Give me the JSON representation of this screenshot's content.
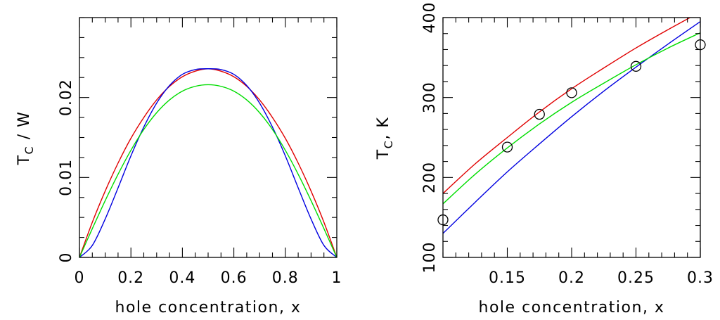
{
  "chart_data": [
    {
      "type": "line",
      "xlabel": "hole concentration, x",
      "ylabel": "T_C / W",
      "ylabel_main": "T",
      "ylabel_sub": "C",
      "ylabel_rest": " / W",
      "xlim": [
        0,
        1
      ],
      "ylim": [
        0,
        0.03
      ],
      "x_ticks": [
        0,
        0.2,
        0.4,
        0.6,
        0.8,
        1
      ],
      "x_tick_labels": [
        "0",
        "0.2",
        "0.4",
        "0.6",
        "0.8",
        "1"
      ],
      "y_ticks": [
        0,
        0.01,
        0.02
      ],
      "y_tick_labels": [
        "0",
        "0.01",
        "0.02"
      ],
      "grid": false,
      "series": [
        {
          "color": "#e00000",
          "x": [
            0,
            0.05,
            0.1,
            0.15,
            0.2,
            0.25,
            0.3,
            0.35,
            0.4,
            0.45,
            0.5,
            0.55,
            0.6,
            0.65,
            0.7,
            0.75,
            0.8,
            0.85,
            0.9,
            0.95,
            1
          ],
          "y": [
            0,
            0.0044,
            0.0083,
            0.0118,
            0.0149,
            0.0175,
            0.0197,
            0.0214,
            0.0226,
            0.0233,
            0.0236,
            0.0233,
            0.0226,
            0.0214,
            0.0197,
            0.0175,
            0.0149,
            0.0118,
            0.0083,
            0.0044,
            0
          ]
        },
        {
          "color": "#0000e0",
          "x": [
            0,
            0.05,
            0.1,
            0.15,
            0.2,
            0.25,
            0.3,
            0.35,
            0.4,
            0.45,
            0.5,
            0.55,
            0.6,
            0.65,
            0.7,
            0.75,
            0.8,
            0.85,
            0.9,
            0.95,
            1
          ],
          "y": [
            0,
            0.0015,
            0.0048,
            0.0087,
            0.0127,
            0.0163,
            0.0193,
            0.0215,
            0.0229,
            0.0235,
            0.0236,
            0.0235,
            0.0229,
            0.0215,
            0.0193,
            0.0163,
            0.0127,
            0.0087,
            0.0048,
            0.0015,
            0
          ]
        },
        {
          "color": "#00dd00",
          "x": [
            0,
            0.05,
            0.1,
            0.15,
            0.2,
            0.25,
            0.3,
            0.35,
            0.4,
            0.45,
            0.5,
            0.55,
            0.6,
            0.65,
            0.7,
            0.75,
            0.8,
            0.85,
            0.9,
            0.95,
            1
          ],
          "y": [
            0,
            0.0036,
            0.0071,
            0.0104,
            0.0134,
            0.016,
            0.0181,
            0.0197,
            0.0208,
            0.0214,
            0.0216,
            0.0214,
            0.0208,
            0.0197,
            0.0181,
            0.016,
            0.0134,
            0.0104,
            0.0071,
            0.0036,
            0
          ]
        }
      ]
    },
    {
      "type": "line",
      "xlabel": "hole concentration, x",
      "ylabel": "T_C, K",
      "ylabel_main": "T",
      "ylabel_sub": "C",
      "ylabel_rest": ", K",
      "xlim": [
        0.1,
        0.3
      ],
      "ylim": [
        100,
        400
      ],
      "x_ticks": [
        0.15,
        0.2,
        0.25,
        0.3
      ],
      "x_tick_labels": [
        "0.15",
        "0.2",
        "0.25",
        "0.3"
      ],
      "y_ticks": [
        100,
        200,
        300,
        400
      ],
      "y_tick_labels": [
        "100",
        "200",
        "300",
        "400"
      ],
      "grid": false,
      "series": [
        {
          "color": "#e00000",
          "x": [
            0.1,
            0.125,
            0.15,
            0.175,
            0.2,
            0.225,
            0.25,
            0.275,
            0.3
          ],
          "y": [
            180,
            217,
            250,
            282,
            311,
            337,
            362,
            385,
            407
          ]
        },
        {
          "color": "#0000e0",
          "x": [
            0.1,
            0.125,
            0.15,
            0.175,
            0.2,
            0.225,
            0.25,
            0.275,
            0.3
          ],
          "y": [
            130,
            169,
            207,
            242,
            276,
            308,
            338,
            367,
            395
          ]
        },
        {
          "color": "#00dd00",
          "x": [
            0.1,
            0.125,
            0.15,
            0.175,
            0.2,
            0.225,
            0.25,
            0.275,
            0.3
          ],
          "y": [
            167,
            204,
            237,
            267,
            294,
            318,
            341,
            362,
            381
          ]
        },
        {
          "type": "scatter",
          "marker": "circle",
          "x": [
            0.1,
            0.15,
            0.175,
            0.2,
            0.25,
            0.3
          ],
          "y": [
            147,
            238,
            279,
            306,
            339,
            366
          ]
        }
      ]
    }
  ]
}
